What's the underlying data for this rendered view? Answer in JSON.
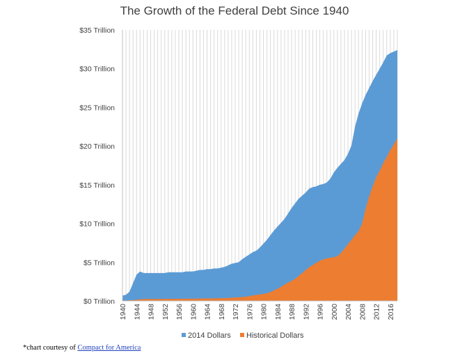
{
  "chart_data": {
    "type": "area",
    "title": "The Growth of the Federal Debt Since 1940",
    "xlabel": "",
    "ylabel": "",
    "x": [
      1940,
      1941,
      1942,
      1943,
      1944,
      1945,
      1946,
      1947,
      1948,
      1949,
      1950,
      1951,
      1952,
      1953,
      1954,
      1955,
      1956,
      1957,
      1958,
      1959,
      1960,
      1961,
      1962,
      1963,
      1964,
      1965,
      1966,
      1967,
      1968,
      1969,
      1970,
      1971,
      1972,
      1973,
      1974,
      1975,
      1976,
      1977,
      1978,
      1979,
      1980,
      1981,
      1982,
      1983,
      1984,
      1985,
      1986,
      1987,
      1988,
      1989,
      1990,
      1991,
      1992,
      1993,
      1994,
      1995,
      1996,
      1997,
      1998,
      1999,
      2000,
      2001,
      2002,
      2003,
      2004,
      2005,
      2006,
      2007,
      2008,
      2009,
      2010,
      2011,
      2012,
      2013,
      2014,
      2015,
      2016,
      2017,
      2018
    ],
    "x_tick_labels": [
      "1940",
      "1944",
      "1948",
      "1952",
      "1956",
      "1960",
      "1964",
      "1968",
      "1972",
      "1976",
      "1980",
      "1984",
      "1988",
      "1992",
      "1996",
      "2000",
      "2004",
      "2008",
      "2012",
      "2016"
    ],
    "y_tick_labels": [
      "$0 Trillion",
      "$5 Trillion",
      "$10 Trillion",
      "$15 Trillion",
      "$20 Trillion",
      "$25 Trillion",
      "$30 Trillion",
      "$35 Trillion"
    ],
    "ylim": [
      0,
      35
    ],
    "y_unit": "Trillion",
    "series": [
      {
        "name": "2014 Dollars",
        "color": "#5b9bd5",
        "values": [
          0.7,
          0.8,
          1.2,
          2.3,
          3.4,
          3.8,
          3.6,
          3.6,
          3.6,
          3.6,
          3.6,
          3.6,
          3.6,
          3.7,
          3.7,
          3.7,
          3.7,
          3.7,
          3.8,
          3.8,
          3.8,
          3.9,
          4.0,
          4.0,
          4.1,
          4.1,
          4.2,
          4.2,
          4.3,
          4.4,
          4.6,
          4.8,
          4.9,
          5.0,
          5.4,
          5.7,
          6.0,
          6.3,
          6.5,
          6.9,
          7.4,
          7.9,
          8.5,
          9.1,
          9.6,
          10.1,
          10.6,
          11.3,
          12.0,
          12.6,
          13.2,
          13.6,
          14.0,
          14.5,
          14.7,
          14.8,
          15.0,
          15.1,
          15.3,
          15.8,
          16.6,
          17.2,
          17.7,
          18.2,
          19.0,
          20.1,
          22.5,
          24.2,
          25.5,
          26.6,
          27.5,
          28.4,
          29.2,
          30.0,
          30.8,
          31.7,
          32.0,
          32.2,
          32.4
        ]
      },
      {
        "name": "Historical Dollars",
        "color": "#ed7d31",
        "values": [
          0.05,
          0.06,
          0.08,
          0.1,
          0.15,
          0.2,
          0.25,
          0.25,
          0.25,
          0.25,
          0.25,
          0.25,
          0.26,
          0.27,
          0.27,
          0.27,
          0.27,
          0.27,
          0.28,
          0.29,
          0.29,
          0.29,
          0.3,
          0.31,
          0.32,
          0.32,
          0.33,
          0.34,
          0.35,
          0.37,
          0.38,
          0.41,
          0.44,
          0.47,
          0.5,
          0.54,
          0.62,
          0.71,
          0.78,
          0.83,
          0.91,
          0.99,
          1.14,
          1.37,
          1.56,
          1.82,
          2.12,
          2.35,
          2.6,
          2.86,
          3.23,
          3.6,
          4.0,
          4.35,
          4.64,
          4.92,
          5.18,
          5.37,
          5.48,
          5.61,
          5.63,
          5.77,
          6.2,
          6.75,
          7.35,
          7.9,
          8.5,
          9.0,
          10.0,
          11.9,
          13.5,
          14.8,
          16.0,
          16.8,
          17.8,
          18.6,
          19.5,
          20.2,
          21.0
        ]
      }
    ],
    "grid": true,
    "legend": "bottom"
  },
  "footnote": {
    "prefix": "*chart courtesy of ",
    "link_text": "Compact for America"
  }
}
